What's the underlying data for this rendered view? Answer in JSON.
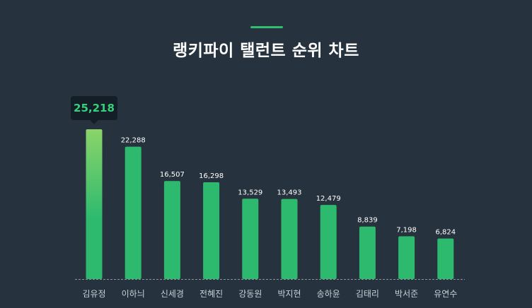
{
  "chart_data": {
    "type": "bar",
    "title": "랭키파이 탤런트 순위 차트",
    "xlabel": "",
    "ylabel": "",
    "categories": [
      "김유정",
      "이하늬",
      "신세경",
      "전혜진",
      "강동원",
      "박지현",
      "송하윤",
      "김태리",
      "박서준",
      "유연수"
    ],
    "values": [
      25218,
      22288,
      16507,
      16298,
      13529,
      13493,
      12479,
      8839,
      7198,
      6824
    ],
    "value_labels": [
      "25,218",
      "22,288",
      "16,507",
      "16,298",
      "13,529",
      "13,493",
      "12,479",
      "8,839",
      "7,198",
      "6,824"
    ],
    "highlight_index": 0,
    "ylim": [
      0,
      25218
    ],
    "grid": false,
    "legend": "none",
    "colors": {
      "background": "#26323d",
      "bar": "#2dba6e",
      "highlight_top": "#8bd46a",
      "highlight_bottom": "#2dba6e",
      "tooltip_bg": "#141e27",
      "tooltip_text": "#35d17a",
      "baseline": "#8a949c",
      "label": "#ffffff",
      "category": "#c9d0d6"
    }
  }
}
